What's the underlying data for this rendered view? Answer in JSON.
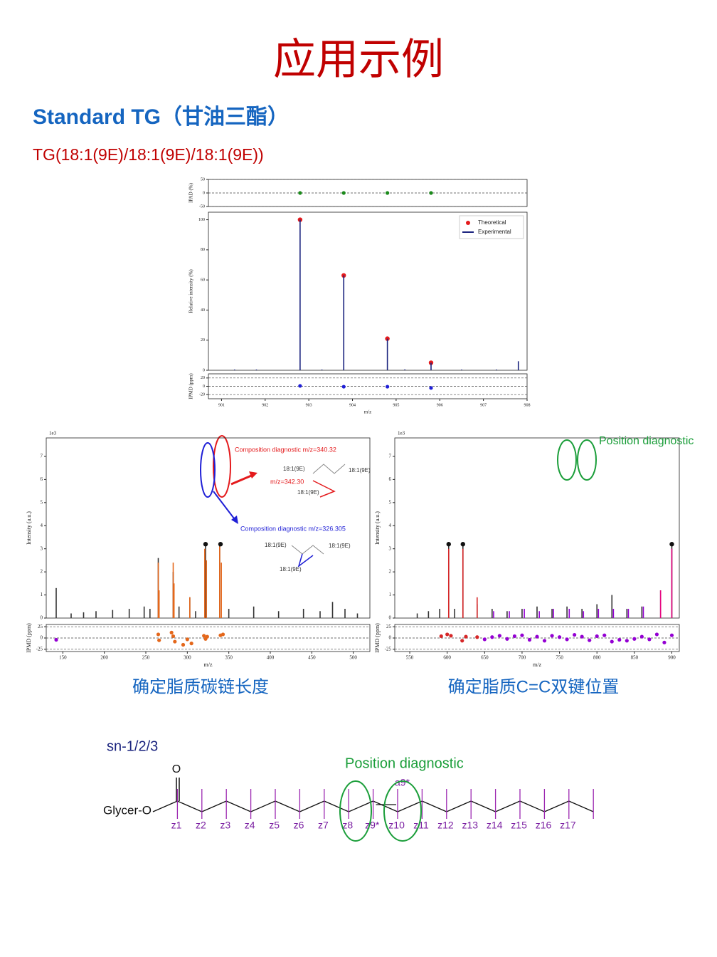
{
  "title": "应用示例",
  "heading": "Standard TG（甘油三酯）",
  "compound": "TG(18:1(9E)/18:1(9E)/18:1(9E))",
  "captions": [
    "确定脂质碳链长度",
    "确定脂质C=C双键位置"
  ],
  "chart_data": [
    {
      "type": "stem",
      "x_label": "m/z",
      "xlim": [
        900.7,
        908
      ],
      "xticks": [
        901,
        902,
        903,
        904,
        905,
        906,
        907,
        908
      ],
      "legend": "upper right",
      "ipad": {
        "y_label": "IPAD (%)",
        "ylim": [
          -50,
          50
        ],
        "yticks": [
          -50,
          0,
          50
        ],
        "series": [
          {
            "color": "#1b8a1b",
            "x": [
              902.8,
              903.8,
              904.8,
              905.8
            ],
            "values": [
              0,
              0,
              0,
              0
            ]
          }
        ]
      },
      "main": {
        "y_label": "Relative intensity (%)",
        "ylim": [
          0,
          105
        ],
        "yticks": [
          0,
          20,
          40,
          60,
          80,
          100
        ],
        "series": [
          {
            "name": "Theoretical",
            "style": "dot",
            "color": "#e41a1c",
            "x": [
              902.8,
              903.8,
              904.8,
              905.8
            ],
            "values": [
              100,
              63,
              21,
              5
            ]
          },
          {
            "name": "Experimental",
            "style": "stem",
            "color": "#1a237e",
            "x": [
              901.3,
              901.8,
              902.8,
              903.3,
              903.8,
              904.8,
              905.2,
              905.8,
              906.5,
              907.3,
              907.8
            ],
            "values": [
              0.5,
              0.5,
              100,
              0.5,
              63,
              21,
              0.6,
              5,
              0.5,
              0.5,
              6
            ]
          }
        ]
      },
      "ipmd": {
        "y_label": "IPMD (ppm)",
        "ylim": [
          -30,
          30
        ],
        "yticks": [
          -20,
          0,
          20
        ],
        "series": [
          {
            "color": "#1f1fd6",
            "x": [
              902.8,
              903.8,
              904.8,
              905.8
            ],
            "values": [
              1,
              -1,
              -1,
              -4
            ]
          }
        ]
      }
    },
    {
      "type": "stem",
      "x_label": "m/z",
      "scale_label": "1e3",
      "xlim": [
        130,
        520
      ],
      "xticks": [
        150,
        200,
        250,
        300,
        350,
        400,
        450,
        500
      ],
      "main": {
        "y_label": "Intensity (a.u.)",
        "ylim": [
          0,
          7.8
        ],
        "yticks": [
          0,
          1,
          2,
          3,
          4,
          5,
          6,
          7
        ],
        "series": [
          {
            "style": "stem",
            "color": "#333333",
            "x": [
              142,
              160,
              175,
              190,
              210,
              230,
              248,
              255,
              265,
              283,
              290,
              303,
              310,
              322,
              339,
              350,
              380,
              410,
              440,
              460,
              475,
              490,
              505
            ],
            "values": [
              1.3,
              0.2,
              0.25,
              0.3,
              0.35,
              0.4,
              0.5,
              0.4,
              2.6,
              2.0,
              0.5,
              0.9,
              0.3,
              3.2,
              3.2,
              0.4,
              0.5,
              0.3,
              0.4,
              0.3,
              0.7,
              0.4,
              0.2
            ]
          },
          {
            "style": "stem",
            "color": "#e4671b",
            "x": [
              265,
              266,
              283,
              284,
              303,
              321,
              323,
              339,
              341
            ],
            "values": [
              2.4,
              1.2,
              2.4,
              1.5,
              0.9,
              3.0,
              2.5,
              3.1,
              2.4
            ]
          },
          {
            "style": "dot",
            "color": "#111111",
            "x": [
              322,
              340
            ],
            "values": [
              3.2,
              3.2
            ]
          }
        ]
      },
      "ipmd": {
        "y_label": "IPMD (ppm)",
        "ylim": [
          -30,
          30
        ],
        "yticks": [
          -25,
          0,
          25
        ],
        "series": [
          {
            "color": "#e4671b",
            "x": [
              265,
              266,
              281,
              283,
              285,
              295,
              300,
              305,
              320,
              322,
              324,
              340,
              343
            ],
            "values": [
              8,
              -5,
              12,
              4,
              -8,
              -15,
              -3,
              -12,
              5,
              -2,
              3,
              6,
              8
            ]
          },
          {
            "color": "#9400d3",
            "x": [
              142
            ],
            "values": [
              -4
            ]
          }
        ]
      },
      "annotations": [
        {
          "text": "Composition diagnostic m/z=340.32",
          "color": "#e41a1c"
        },
        {
          "text": "18:1(9E)",
          "color": "#333333"
        },
        {
          "text": "18:1(9E)",
          "color": "#333333"
        },
        {
          "text": "m/z=342.30",
          "color": "#e41a1c"
        },
        {
          "text": "18:1(9E)",
          "color": "#333333"
        },
        {
          "text": "Composition diagnostic m/z=326.305",
          "color": "#1f1fd6"
        },
        {
          "text": "18:1(9E)",
          "color": "#333333"
        },
        {
          "text": "18:1(9E)",
          "color": "#333333"
        },
        {
          "text": "18:1(9E)",
          "color": "#333333"
        }
      ]
    },
    {
      "type": "stem",
      "x_label": "m/z",
      "scale_label": "1e3",
      "xlim": [
        530,
        910
      ],
      "xticks": [
        550,
        600,
        650,
        700,
        750,
        800,
        850,
        900
      ],
      "main": {
        "y_label": "Intensity (a.u.)",
        "ylim": [
          0,
          7.8
        ],
        "yticks": [
          0,
          1,
          2,
          3,
          4,
          5,
          6,
          7
        ],
        "series": [
          {
            "style": "stem",
            "color": "#333333",
            "x": [
              560,
              575,
              590,
              602,
              610,
              621,
              640,
              660,
              680,
              700,
              720,
              740,
              760,
              780,
              800,
              820,
              840,
              860,
              885,
              900
            ],
            "values": [
              0.2,
              0.3,
              0.4,
              3.2,
              0.4,
              3.2,
              0.6,
              0.4,
              0.3,
              0.4,
              0.5,
              0.4,
              0.5,
              0.4,
              0.6,
              1.0,
              0.4,
              0.5,
              1.2,
              3.2
            ]
          },
          {
            "style": "stem",
            "color": "#d62728",
            "x": [
              602,
              621,
              640
            ],
            "values": [
              3.0,
              3.0,
              0.9
            ]
          },
          {
            "style": "stem",
            "color": "#e6007e",
            "x": [
              885,
              900
            ],
            "values": [
              1.2,
              3.0
            ]
          },
          {
            "style": "stem",
            "color": "#9400d3",
            "x": [
              662,
              683,
              703,
              723,
              742,
              763,
              782,
              802,
              822,
              842,
              862
            ],
            "values": [
              0.3,
              0.3,
              0.4,
              0.3,
              0.4,
              0.4,
              0.3,
              0.4,
              0.4,
              0.4,
              0.5
            ]
          },
          {
            "style": "dot",
            "color": "#111111",
            "x": [
              602,
              621,
              900
            ],
            "values": [
              3.2,
              3.2,
              3.2
            ]
          }
        ]
      },
      "ipmd": {
        "y_label": "IPMD (ppm)",
        "ylim": [
          -30,
          30
        ],
        "yticks": [
          -25,
          0,
          25
        ],
        "series": [
          {
            "color": "#d62728",
            "x": [
              592,
              600,
              605,
              620,
              625,
              640
            ],
            "values": [
              4,
              8,
              5,
              -6,
              3,
              2
            ]
          },
          {
            "color": "#9400d3",
            "x": [
              650,
              660,
              670,
              680,
              690,
              700,
              710,
              720,
              730,
              740,
              750,
              760,
              770,
              780,
              790,
              800,
              810,
              820,
              830,
              840,
              850,
              860,
              870,
              880,
              890,
              900
            ],
            "values": [
              -3,
              2,
              5,
              -2,
              4,
              6,
              -4,
              3,
              -6,
              5,
              2,
              -3,
              7,
              3,
              -5,
              4,
              6,
              -8,
              -4,
              -6,
              -2,
              3,
              -3,
              8,
              -10,
              6
            ]
          }
        ]
      },
      "annotations": [
        {
          "text": "Position diagnostic",
          "color": "#1b9e3a"
        }
      ]
    }
  ],
  "diagram": {
    "chain_label": "sn-1/2/3",
    "oxygen": "O",
    "head": "Glycer-O",
    "diagnostic": "Position diagnostic",
    "a_label": "a9*",
    "z_labels": [
      "z1",
      "z2",
      "z3",
      "z4",
      "z5",
      "z6",
      "z7",
      "z8",
      "z9*",
      "z10",
      "z11",
      "z12",
      "z13",
      "z14",
      "z15",
      "z16",
      "z17"
    ]
  }
}
